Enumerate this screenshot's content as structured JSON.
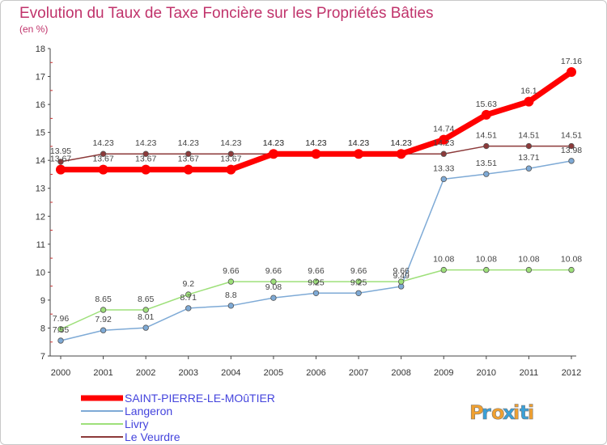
{
  "chart_data": {
    "type": "line",
    "title": "Evolution du Taux de Taxe Foncière sur les Propriétés Bâties",
    "subtitle": "(en %)",
    "xlabel": "",
    "ylabel": "",
    "categories": [
      "2000",
      "2001",
      "2002",
      "2003",
      "2004",
      "2005",
      "2006",
      "2007",
      "2008",
      "2009",
      "2010",
      "2011",
      "2012"
    ],
    "ylim": [
      7,
      18
    ],
    "yticks": [
      7,
      8,
      9,
      10,
      11,
      12,
      13,
      14,
      15,
      16,
      17,
      18
    ],
    "grid": false,
    "legend_position": "bottom-left",
    "series": [
      {
        "name": "SAINT-PIERRE-LE-MOûTIER",
        "color": "#ff0000",
        "values": [
          13.67,
          13.67,
          13.67,
          13.67,
          13.67,
          14.23,
          14.23,
          14.23,
          14.23,
          14.74,
          15.63,
          16.1,
          17.16
        ],
        "labels": [
          "13.67",
          "13.67",
          "13.67",
          "13.67",
          "13.67",
          "14.23",
          "14.23",
          "14.23",
          "14.23",
          "14.74",
          "15.63",
          "16.1",
          "17.16"
        ]
      },
      {
        "name": "Langeron",
        "color": "#7eaad6",
        "values": [
          7.55,
          7.92,
          8.01,
          8.71,
          8.8,
          9.08,
          9.25,
          9.25,
          9.49,
          13.33,
          13.51,
          13.71,
          13.98
        ],
        "labels": [
          "7.55",
          "7.92",
          "8.01",
          "8.71",
          "8.8",
          "9.08",
          "9.25",
          "9.25",
          "9.49",
          "13.33",
          "13.51",
          "13.71",
          "13.98"
        ]
      },
      {
        "name": "Livry",
        "color": "#9ee07a",
        "values": [
          7.96,
          8.65,
          8.65,
          9.2,
          9.66,
          9.66,
          9.66,
          9.66,
          9.66,
          10.08,
          10.08,
          10.08,
          10.08
        ],
        "labels": [
          "7.96",
          "8.65",
          "8.65",
          "9.2",
          "9.66",
          "9.66",
          "9.66",
          "9.66",
          "9.66",
          "10.08",
          "10.08",
          "10.08",
          "10.08"
        ]
      },
      {
        "name": "Le Veurdre",
        "color": "#8c3a3a",
        "values": [
          13.95,
          14.23,
          14.23,
          14.23,
          14.23,
          14.23,
          14.23,
          14.23,
          14.23,
          14.23,
          14.51,
          14.51,
          14.51
        ],
        "labels": [
          "13.95",
          "14.23",
          "14.23",
          "14.23",
          "14.23",
          "14.23",
          "14.23",
          "14.23",
          "14.23",
          "14.23",
          "14.51",
          "14.51",
          "14.51"
        ]
      }
    ]
  },
  "brand": {
    "letters": [
      "P",
      "r",
      "o",
      "x",
      "i",
      "t",
      "i"
    ],
    "colors": [
      "#f0a030",
      "#3aa0d8",
      "#f0a030",
      "#3aa0d8",
      "#f0a030",
      "#3aa0d8",
      "#f0a030"
    ]
  }
}
